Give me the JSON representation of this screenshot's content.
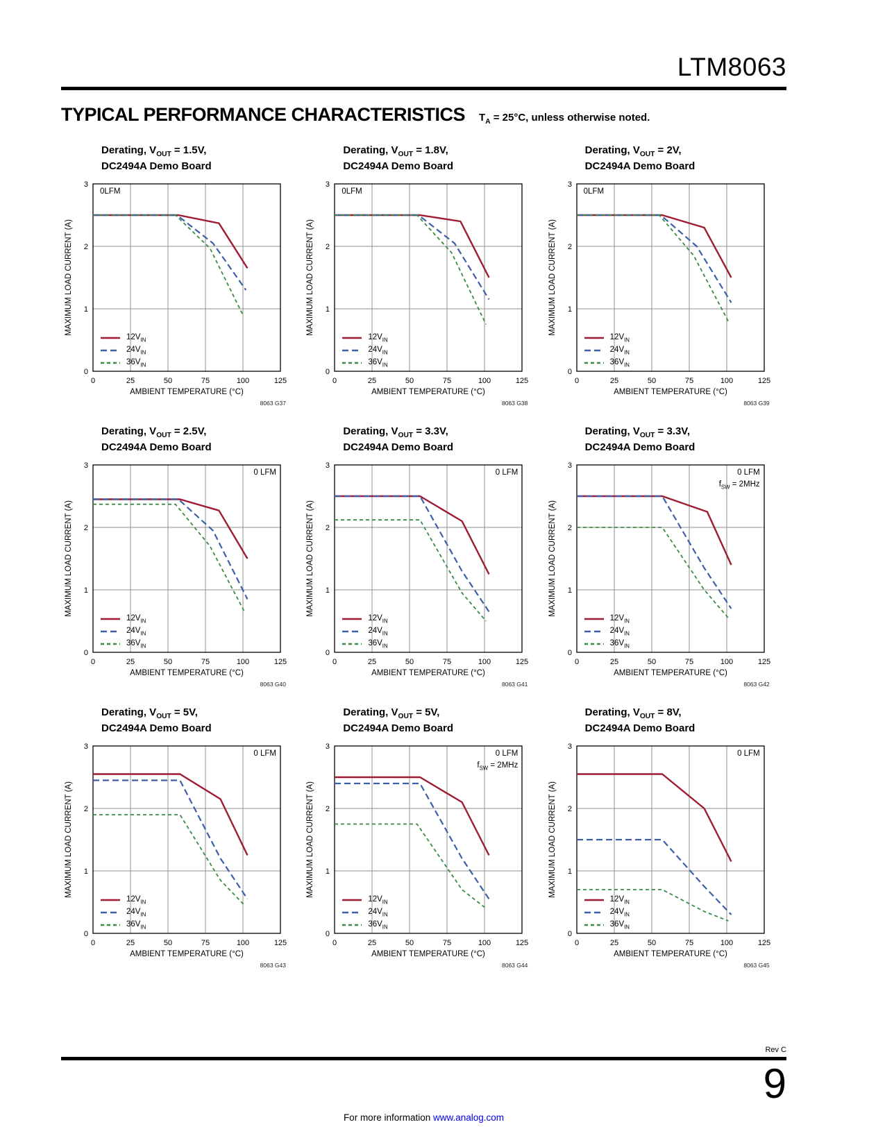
{
  "page": {
    "part_number": "LTM8063",
    "section_title": "TYPICAL PERFORMANCE CHARACTERISTICS",
    "note_t": "T",
    "note_sub": "A",
    "note_rest": " = 25°C, unless otherwise noted.",
    "rev": "Rev C",
    "page_number": "9",
    "footer_text": "For more information ",
    "footer_link": "www.analog.com",
    "link_color": "#0000EE"
  },
  "axes": {
    "xlabel": "AMBIENT TEMPERATURE (°C)",
    "ylabel": "MAXIMUM LOAD CURRENT (A)",
    "xlim": [
      0,
      125
    ],
    "ylim": [
      0,
      3
    ],
    "xticks": [
      0,
      25,
      50,
      75,
      100,
      125
    ],
    "yticks": [
      0,
      1,
      2,
      3
    ],
    "grid": true
  },
  "legend": [
    {
      "label": "12V",
      "sub": "IN",
      "color": "#9e1b32",
      "dash": "solid"
    },
    {
      "label": "24V",
      "sub": "IN",
      "color": "#3d5fa8",
      "dash": "long"
    },
    {
      "label": "36V",
      "sub": "IN",
      "color": "#3a8a44",
      "dash": "short"
    }
  ],
  "chart_data": [
    {
      "type": "line",
      "title_line1": [
        {
          "t": "Derating, V"
        },
        {
          "s": "OUT"
        },
        {
          "t": " = 1.5V,"
        }
      ],
      "title_line2": "DC2494A Demo Board",
      "annotation": {
        "pos": "top-left",
        "lines": [
          [
            {
              "t": "0LFM"
            }
          ]
        ]
      },
      "code": "8063 G37",
      "series": [
        {
          "name": "12VIN",
          "points": [
            [
              0,
              2.5
            ],
            [
              57,
              2.5
            ],
            [
              84,
              2.37
            ],
            [
              103,
              1.65
            ]
          ]
        },
        {
          "name": "24VIN",
          "points": [
            [
              0,
              2.5
            ],
            [
              56,
              2.5
            ],
            [
              80,
              2.05
            ],
            [
              102,
              1.3
            ]
          ]
        },
        {
          "name": "36VIN",
          "points": [
            [
              0,
              2.5
            ],
            [
              55,
              2.5
            ],
            [
              78,
              1.97
            ],
            [
              100,
              0.9
            ]
          ]
        }
      ]
    },
    {
      "type": "line",
      "title_line1": [
        {
          "t": "Derating, V"
        },
        {
          "s": "OUT"
        },
        {
          "t": " = 1.8V,"
        }
      ],
      "title_line2": "DC2494A Demo Board",
      "annotation": {
        "pos": "top-left",
        "lines": [
          [
            {
              "t": "0LFM"
            }
          ]
        ]
      },
      "code": "8063 G38",
      "series": [
        {
          "name": "12VIN",
          "points": [
            [
              0,
              2.5
            ],
            [
              57,
              2.5
            ],
            [
              84,
              2.4
            ],
            [
              103,
              1.5
            ]
          ]
        },
        {
          "name": "24VIN",
          "points": [
            [
              0,
              2.5
            ],
            [
              56,
              2.5
            ],
            [
              80,
              2.05
            ],
            [
              103,
              1.15
            ]
          ]
        },
        {
          "name": "36VIN",
          "points": [
            [
              0,
              2.5
            ],
            [
              55,
              2.5
            ],
            [
              78,
              1.9
            ],
            [
              101,
              0.75
            ]
          ]
        }
      ]
    },
    {
      "type": "line",
      "title_line1": [
        {
          "t": "Derating, V"
        },
        {
          "s": "OUT"
        },
        {
          "t": " = 2V,"
        }
      ],
      "title_line2": "DC2494A Demo Board",
      "annotation": {
        "pos": "top-left",
        "lines": [
          [
            {
              "t": "0LFM"
            }
          ]
        ]
      },
      "code": "8063 G39",
      "series": [
        {
          "name": "12VIN",
          "points": [
            [
              0,
              2.5
            ],
            [
              57,
              2.5
            ],
            [
              85,
              2.3
            ],
            [
              103,
              1.5
            ]
          ]
        },
        {
          "name": "24VIN",
          "points": [
            [
              0,
              2.5
            ],
            [
              56,
              2.5
            ],
            [
              80,
              2.0
            ],
            [
              103,
              1.1
            ]
          ]
        },
        {
          "name": "36VIN",
          "points": [
            [
              0,
              2.5
            ],
            [
              55,
              2.5
            ],
            [
              78,
              1.85
            ],
            [
              101,
              0.8
            ]
          ]
        }
      ]
    },
    {
      "type": "line",
      "title_line1": [
        {
          "t": "Derating, V"
        },
        {
          "s": "OUT"
        },
        {
          "t": " = 2.5V,"
        }
      ],
      "title_line2": "DC2494A Demo Board",
      "annotation": {
        "pos": "top-right",
        "lines": [
          [
            {
              "t": "0 LFM"
            }
          ]
        ]
      },
      "code": "8063 G40",
      "series": [
        {
          "name": "12VIN",
          "points": [
            [
              0,
              2.45
            ],
            [
              58,
              2.45
            ],
            [
              84,
              2.27
            ],
            [
              103,
              1.5
            ]
          ]
        },
        {
          "name": "24VIN",
          "points": [
            [
              0,
              2.45
            ],
            [
              57,
              2.45
            ],
            [
              80,
              1.95
            ],
            [
              103,
              0.85
            ]
          ]
        },
        {
          "name": "36VIN",
          "points": [
            [
              0,
              2.37
            ],
            [
              55,
              2.37
            ],
            [
              78,
              1.7
            ],
            [
              101,
              0.65
            ]
          ]
        }
      ]
    },
    {
      "type": "line",
      "title_line1": [
        {
          "t": "Derating, V"
        },
        {
          "s": "OUT"
        },
        {
          "t": " = 3.3V,"
        }
      ],
      "title_line2": "DC2494A Demo Board",
      "annotation": {
        "pos": "top-right",
        "lines": [
          [
            {
              "t": "0 LFM"
            }
          ]
        ]
      },
      "code": "8063 G41",
      "series": [
        {
          "name": "12VIN",
          "points": [
            [
              0,
              2.5
            ],
            [
              57,
              2.5
            ],
            [
              85,
              2.1
            ],
            [
              103,
              1.25
            ]
          ]
        },
        {
          "name": "24VIN",
          "points": [
            [
              0,
              2.5
            ],
            [
              57,
              2.5
            ],
            [
              85,
              1.3
            ],
            [
              103,
              0.65
            ]
          ]
        },
        {
          "name": "36VIN",
          "points": [
            [
              0,
              2.12
            ],
            [
              57,
              2.12
            ],
            [
              85,
              0.95
            ],
            [
              101,
              0.5
            ]
          ]
        }
      ]
    },
    {
      "type": "line",
      "title_line1": [
        {
          "t": "Derating, V"
        },
        {
          "s": "OUT"
        },
        {
          "t": " = 3.3V,"
        }
      ],
      "title_line2": "DC2494A Demo Board",
      "annotation": {
        "pos": "top-right",
        "lines": [
          [
            {
              "t": "0 LFM"
            }
          ],
          [
            {
              "t": "f"
            },
            {
              "s": "SW"
            },
            {
              "t": " = 2MHz"
            }
          ]
        ]
      },
      "code": "8063 G42",
      "series": [
        {
          "name": "12VIN",
          "points": [
            [
              0,
              2.5
            ],
            [
              57,
              2.5
            ],
            [
              87,
              2.25
            ],
            [
              103,
              1.4
            ]
          ]
        },
        {
          "name": "24VIN",
          "points": [
            [
              0,
              2.5
            ],
            [
              57,
              2.5
            ],
            [
              85,
              1.35
            ],
            [
              103,
              0.7
            ]
          ]
        },
        {
          "name": "36VIN",
          "points": [
            [
              0,
              2.0
            ],
            [
              57,
              2.0
            ],
            [
              85,
              1.0
            ],
            [
              101,
              0.55
            ]
          ]
        }
      ]
    },
    {
      "type": "line",
      "title_line1": [
        {
          "t": "Derating, V"
        },
        {
          "s": "OUT"
        },
        {
          "t": " = 5V,"
        }
      ],
      "title_line2": "DC2494A Demo Board",
      "annotation": {
        "pos": "top-right",
        "lines": [
          [
            {
              "t": "0 LFM"
            }
          ]
        ]
      },
      "code": "8063 G43",
      "series": [
        {
          "name": "12VIN",
          "points": [
            [
              0,
              2.55
            ],
            [
              58,
              2.55
            ],
            [
              85,
              2.15
            ],
            [
              103,
              1.25
            ]
          ]
        },
        {
          "name": "24VIN",
          "points": [
            [
              0,
              2.45
            ],
            [
              58,
              2.45
            ],
            [
              85,
              1.2
            ],
            [
              103,
              0.55
            ]
          ]
        },
        {
          "name": "36VIN",
          "points": [
            [
              0,
              1.9
            ],
            [
              58,
              1.9
            ],
            [
              85,
              0.85
            ],
            [
              101,
              0.45
            ]
          ]
        }
      ]
    },
    {
      "type": "line",
      "title_line1": [
        {
          "t": "Derating, V"
        },
        {
          "s": "OUT"
        },
        {
          "t": " = 5V,"
        }
      ],
      "title_line2": "DC2494A Demo Board",
      "annotation": {
        "pos": "top-right",
        "lines": [
          [
            {
              "t": "0 LFM"
            }
          ],
          [
            {
              "t": "f"
            },
            {
              "s": "SW"
            },
            {
              "t": " = 2MHz"
            }
          ]
        ]
      },
      "code": "8063 G44",
      "series": [
        {
          "name": "12VIN",
          "points": [
            [
              0,
              2.5
            ],
            [
              57,
              2.5
            ],
            [
              85,
              2.1
            ],
            [
              103,
              1.25
            ]
          ]
        },
        {
          "name": "24VIN",
          "points": [
            [
              0,
              2.4
            ],
            [
              57,
              2.4
            ],
            [
              85,
              1.2
            ],
            [
              103,
              0.55
            ]
          ]
        },
        {
          "name": "36VIN",
          "points": [
            [
              0,
              1.75
            ],
            [
              55,
              1.75
            ],
            [
              85,
              0.7
            ],
            [
              101,
              0.4
            ]
          ]
        }
      ]
    },
    {
      "type": "line",
      "title_line1": [
        {
          "t": "Derating, V"
        },
        {
          "s": "OUT"
        },
        {
          "t": " = 8V,"
        }
      ],
      "title_line2": "DC2494A Demo Board",
      "annotation": {
        "pos": "top-right",
        "lines": [
          [
            {
              "t": "0 LFM"
            }
          ]
        ]
      },
      "code": "8063 G45",
      "series": [
        {
          "name": "12VIN",
          "points": [
            [
              0,
              2.55
            ],
            [
              57,
              2.55
            ],
            [
              85,
              2.0
            ],
            [
              103,
              1.15
            ]
          ]
        },
        {
          "name": "24VIN",
          "points": [
            [
              0,
              1.5
            ],
            [
              57,
              1.5
            ],
            [
              85,
              0.75
            ],
            [
              103,
              0.3
            ]
          ]
        },
        {
          "name": "36VIN",
          "points": [
            [
              0,
              0.7
            ],
            [
              57,
              0.7
            ],
            [
              85,
              0.35
            ],
            [
              101,
              0.2
            ]
          ]
        }
      ]
    }
  ]
}
